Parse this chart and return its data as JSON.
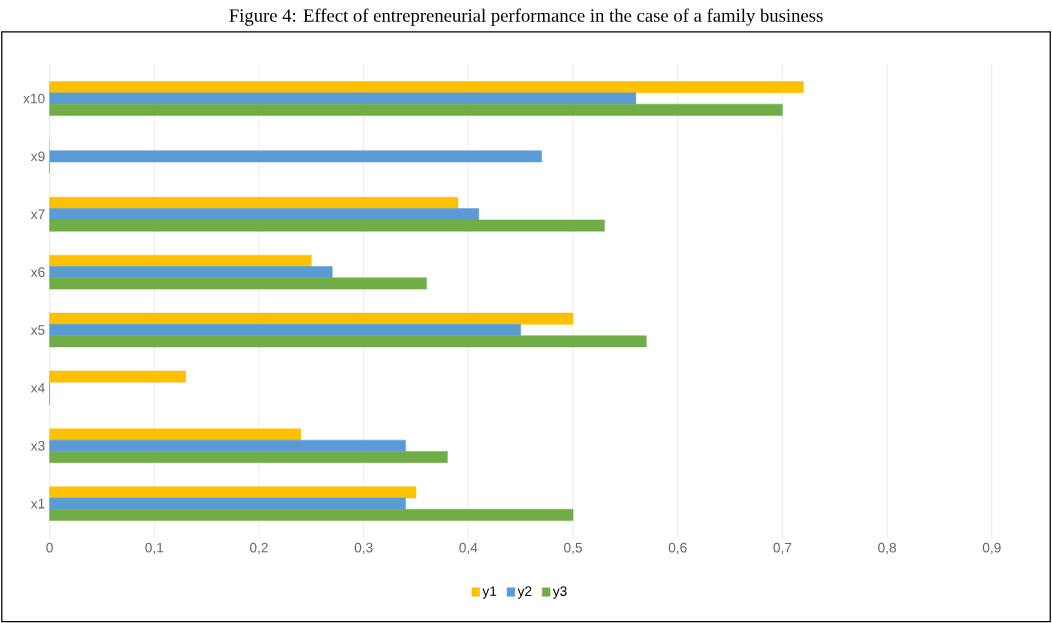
{
  "chart_data": {
    "type": "bar",
    "orientation": "horizontal",
    "title": "Figure 4: Effect of entrepreneurial performance in the case of a family business",
    "categories": [
      "x10",
      "x9",
      "x7",
      "x6",
      "x5",
      "x4",
      "x3",
      "x1"
    ],
    "series": [
      {
        "name": "y1",
        "color": "#ffc000",
        "values": [
          0.72,
          0,
          0.39,
          0.25,
          0.5,
          0.13,
          0.24,
          0.35
        ]
      },
      {
        "name": "y2",
        "color": "#5b9bd5",
        "values": [
          0.56,
          0.47,
          0.41,
          0.27,
          0.45,
          0,
          0.34,
          0.34
        ]
      },
      {
        "name": "y3",
        "color": "#70ad47",
        "values": [
          0.7,
          0,
          0.53,
          0.36,
          0.57,
          0,
          0.38,
          0.5
        ]
      }
    ],
    "xlim": [
      0,
      0.9
    ],
    "xticks": [
      0,
      {
        "value": 0.1,
        "label": "0,1"
      },
      {
        "value": 0.2,
        "label": "0,2"
      },
      {
        "value": 0.3,
        "label": "0,3"
      },
      {
        "value": 0.4,
        "label": "0,4"
      },
      {
        "value": 0.5,
        "label": "0,5"
      },
      {
        "value": 0.6,
        "label": "0,6"
      },
      {
        "value": 0.7,
        "label": "0,7"
      },
      {
        "value": 0.8,
        "label": "0,8"
      },
      {
        "value": 0.9,
        "label": "0,9"
      }
    ],
    "grid": "x",
    "legend": "bottom"
  }
}
